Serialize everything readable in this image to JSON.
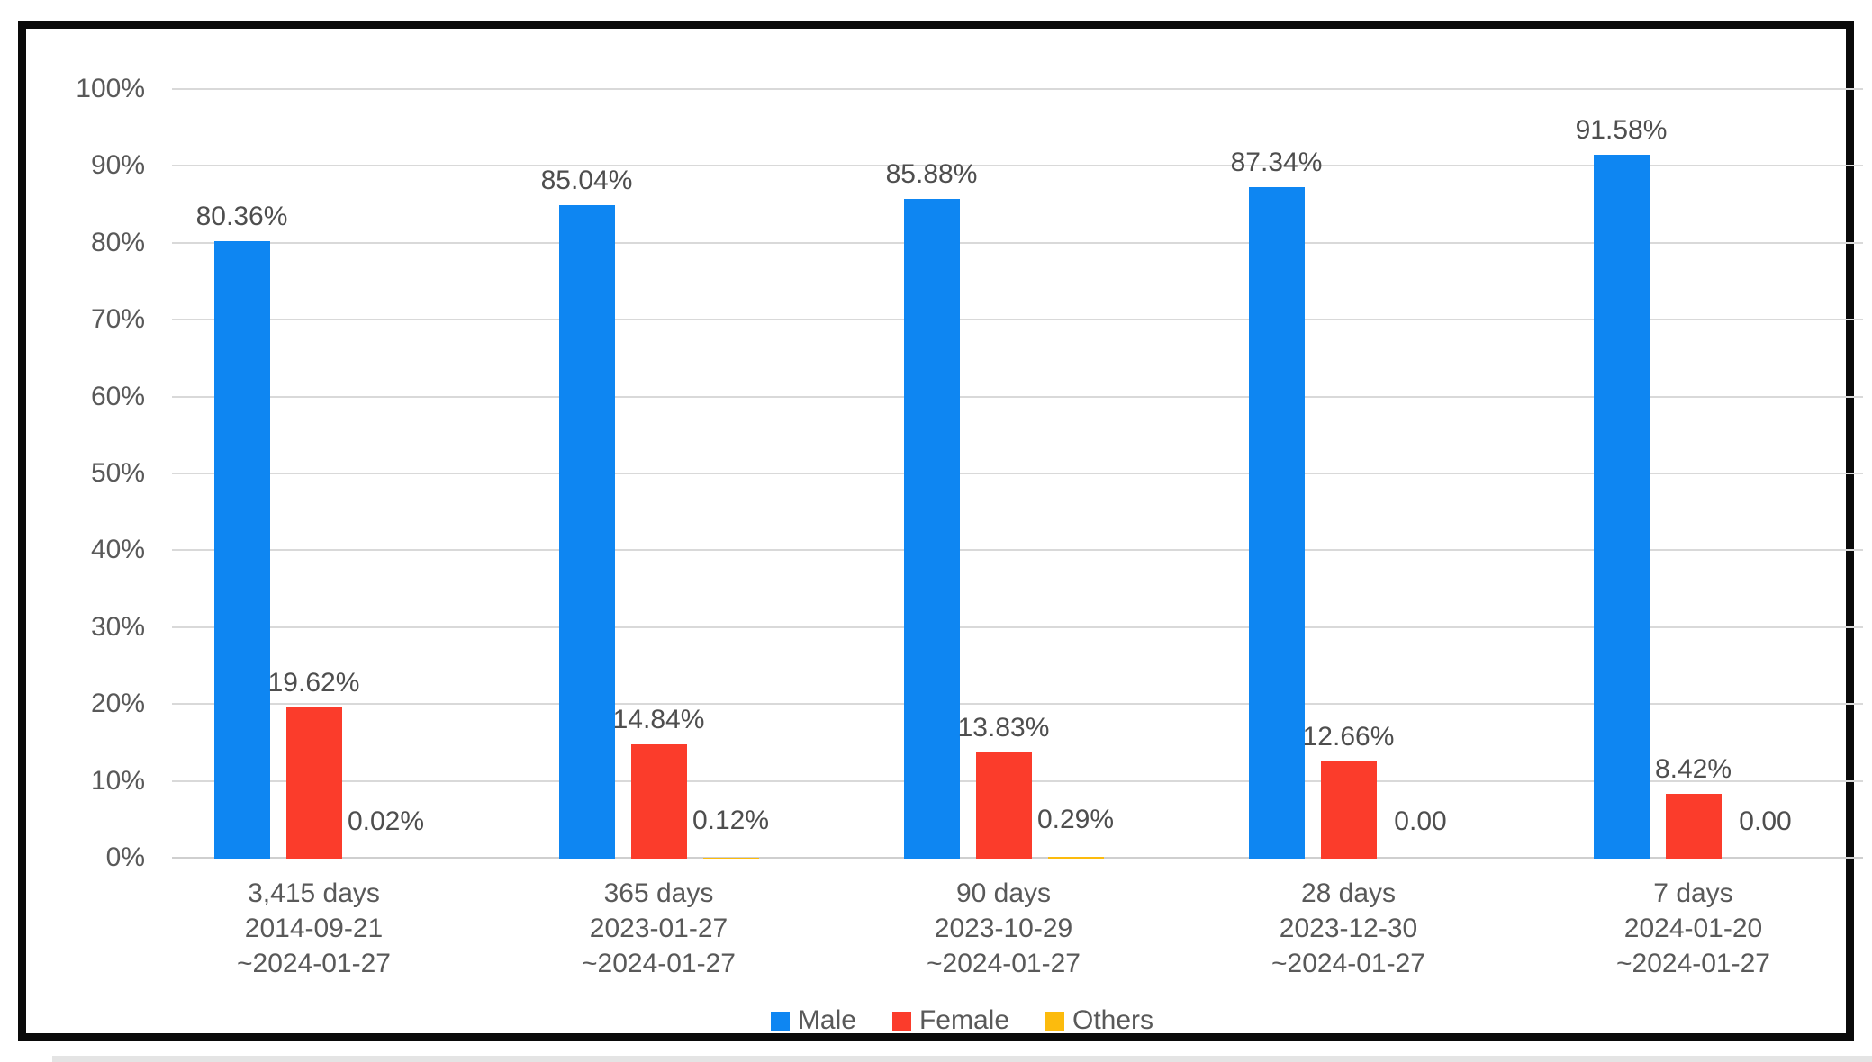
{
  "chart_data": {
    "type": "bar",
    "title": "",
    "categories": [
      [
        "3,415 days",
        "2014-09-21",
        "~2024-01-27"
      ],
      [
        "365 days",
        "2023-01-27",
        "~2024-01-27"
      ],
      [
        "90 days",
        "2023-10-29",
        "~2024-01-27"
      ],
      [
        "28 days",
        "2023-12-30",
        "~2024-01-27"
      ],
      [
        "7 days",
        "2024-01-20",
        "~2024-01-27"
      ]
    ],
    "series": [
      {
        "name": "Male",
        "color": "#0e86f2",
        "values": [
          80.36,
          85.04,
          85.88,
          87.34,
          91.58
        ],
        "data_labels": [
          "80.36%",
          "85.04%",
          "85.88%",
          "87.34%",
          "91.58%"
        ]
      },
      {
        "name": "Female",
        "color": "#fb3c2b",
        "values": [
          19.62,
          14.84,
          13.83,
          12.66,
          8.42
        ],
        "data_labels": [
          "19.62%",
          "14.84%",
          "13.83%",
          "12.66%",
          "8.42%"
        ]
      },
      {
        "name": "Others",
        "color": "#fcbb0d",
        "values": [
          0.02,
          0.12,
          0.29,
          0.0,
          0.0
        ],
        "data_labels": [
          "0.02%",
          "0.12%",
          "0.29%",
          "0.00",
          "0.00"
        ]
      }
    ],
    "y_axis": {
      "min": 0,
      "max": 100,
      "step": 10,
      "tick_labels": [
        "0%",
        "10%",
        "20%",
        "30%",
        "40%",
        "50%",
        "60%",
        "70%",
        "80%",
        "90%",
        "100%"
      ]
    },
    "legend": {
      "position": "bottom",
      "entries": [
        {
          "label": "Male",
          "color": "#0e86f2"
        },
        {
          "label": "Female",
          "color": "#fb3c2b"
        },
        {
          "label": "Others",
          "color": "#fcbb0d"
        }
      ]
    },
    "grid": true,
    "ylim": [
      0,
      100
    ]
  },
  "frame": {
    "border_color": "#0a0a0a",
    "background": "#ffffff",
    "grid_color": "#d9d9d9",
    "axis_color": "#cfcfcf",
    "tick_text_color": "#595959",
    "value_label_color": "#4e4e4e",
    "bottom_strip_color": "#e4e4e4"
  }
}
